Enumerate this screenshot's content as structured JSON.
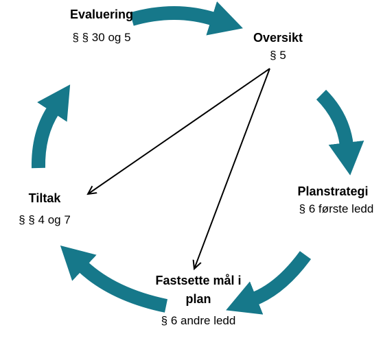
{
  "nodes": [
    {
      "label": "Evaluering",
      "sublabel": "§ § 30 og 5"
    },
    {
      "label": "Oversikt",
      "sublabel": "§ 5"
    },
    {
      "label": "Planstrategi",
      "sublabel": "§ 6 første ledd"
    },
    {
      "label": "Fastsette mål i plan",
      "sublabel": "§ 6 andre ledd"
    },
    {
      "label": "Tiltak",
      "sublabel": "§ § 4 og 7"
    }
  ]
}
